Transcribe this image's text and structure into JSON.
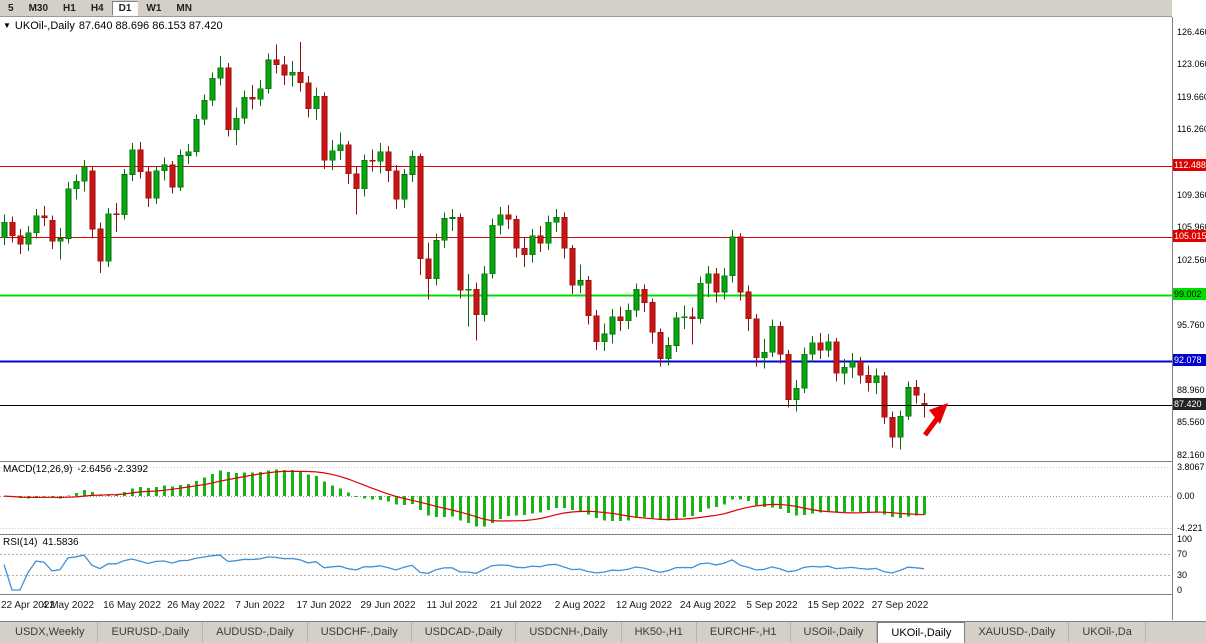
{
  "toolbar": {
    "timeframes": [
      "5",
      "M30",
      "H1",
      "H4",
      "D1",
      "W1",
      "MN"
    ],
    "active": "D1"
  },
  "chart_header": {
    "collapse_icon": "▼",
    "title": "UKOil-,Daily",
    "ohlc": "87.640 88.696 86.153 87.420"
  },
  "chart_data": {
    "type": "candlestick",
    "symbol": "UKOil-",
    "period": "Daily",
    "y_range": [
      81.6,
      128.1
    ],
    "colors": {
      "bull": "#07a80f",
      "bull_dark": "#046b09",
      "bear": "#d01414",
      "bear_dark": "#8f0d0d",
      "macd_hist": "#18b418",
      "macd_signal": "#e00000",
      "rsi_line": "#4090d8",
      "level_red": "#e00000",
      "level_green": "#00dd00",
      "level_blue": "#0000d0",
      "current_line": "#000000"
    },
    "price_axis": {
      "ticks": [
        126.46,
        123.06,
        119.66,
        116.26,
        109.36,
        105.96,
        102.56,
        95.76,
        88.96,
        85.56,
        82.16
      ],
      "badges": [
        {
          "price": 112.488,
          "label": "112.488",
          "color": "#e00000",
          "text_color": "#ffffff"
        },
        {
          "price": 105.015,
          "label": "105.015",
          "color": "#e00000",
          "text_color": "#ffffff"
        },
        {
          "price": 99.002,
          "label": "99.002",
          "color": "#00dd00",
          "text_color": "#000000"
        },
        {
          "price": 92.078,
          "label": "92.078",
          "color": "#0000d0",
          "text_color": "#ffffff"
        },
        {
          "price": 87.42,
          "label": "87.420",
          "color": "#222222",
          "text_color": "#ffffff"
        }
      ]
    },
    "levels": [
      {
        "price": 112.488,
        "color": "#e00000",
        "width": 1
      },
      {
        "price": 105.015,
        "color": "#e00000",
        "width": 1
      },
      {
        "price": 99.002,
        "color": "#00dd00",
        "width": 2
      },
      {
        "price": 92.078,
        "color": "#0000d0",
        "width": 2
      }
    ],
    "current_price": 87.42,
    "arrow": {
      "x": 936,
      "y": 402,
      "color": "#e80000",
      "direction": "up-right"
    },
    "x_labels": [
      {
        "i": 0,
        "t": "22 Apr 2022"
      },
      {
        "i": 8,
        "t": "4 May 2022"
      },
      {
        "i": 16,
        "t": "16 May 2022"
      },
      {
        "i": 24,
        "t": "26 May 2022"
      },
      {
        "i": 32,
        "t": "7 Jun 2022"
      },
      {
        "i": 40,
        "t": "17 Jun 2022"
      },
      {
        "i": 48,
        "t": "29 Jun 2022"
      },
      {
        "i": 56,
        "t": "11 Jul 2022"
      },
      {
        "i": 64,
        "t": "21 Jul 2022"
      },
      {
        "i": 72,
        "t": "2 Aug 2022"
      },
      {
        "i": 80,
        "t": "12 Aug 2022"
      },
      {
        "i": 88,
        "t": "24 Aug 2022"
      },
      {
        "i": 96,
        "t": "5 Sep 2022"
      },
      {
        "i": 104,
        "t": "15 Sep 2022"
      },
      {
        "i": 112,
        "t": "27 Sep 2022"
      }
    ],
    "candles": [
      [
        105,
        107.4,
        104.2,
        106.6
      ],
      [
        106.6,
        107.2,
        104.5,
        105.2
      ],
      [
        105.2,
        105.9,
        103.3,
        104.3
      ],
      [
        104.3,
        106.2,
        103.6,
        105.5
      ],
      [
        105.5,
        108,
        104.9,
        107.3
      ],
      [
        107.3,
        108.3,
        106.2,
        107.1
      ],
      [
        106.8,
        107.3,
        103.8,
        104.6
      ],
      [
        104.6,
        106,
        102.7,
        104.9
      ],
      [
        104.9,
        110.8,
        104.4,
        110.1
      ],
      [
        110.1,
        111.6,
        109,
        110.9
      ],
      [
        110.9,
        113.1,
        109.8,
        112.4
      ],
      [
        112,
        112.4,
        104.9,
        105.9
      ],
      [
        105.9,
        106.6,
        101.3,
        102.5
      ],
      [
        102.5,
        108.1,
        101.9,
        107.5
      ],
      [
        107.5,
        108.6,
        105.6,
        107.4
      ],
      [
        107.4,
        112.2,
        106.9,
        111.6
      ],
      [
        111.6,
        114.9,
        110.9,
        114.2
      ],
      [
        114.2,
        115,
        111.2,
        111.9
      ],
      [
        111.9,
        112.4,
        108.2,
        109.1
      ],
      [
        109.1,
        112.5,
        108.5,
        112
      ],
      [
        112,
        113.4,
        111,
        112.6
      ],
      [
        112.6,
        113,
        109.6,
        110.3
      ],
      [
        110.3,
        114.2,
        109.9,
        113.6
      ],
      [
        113.6,
        114.8,
        112.7,
        114
      ],
      [
        114,
        117.9,
        113.5,
        117.4
      ],
      [
        117.4,
        120,
        116.8,
        119.4
      ],
      [
        119.4,
        122.3,
        118.8,
        121.7
      ],
      [
        121.7,
        124,
        120.9,
        122.8
      ],
      [
        122.8,
        123.3,
        115.6,
        116.3
      ],
      [
        116.3,
        118.6,
        114.7,
        117.5
      ],
      [
        117.5,
        120.4,
        116.9,
        119.7
      ],
      [
        119.7,
        121,
        118.4,
        119.5
      ],
      [
        119.5,
        121.5,
        118.8,
        120.6
      ],
      [
        120.6,
        124.3,
        120.1,
        123.6
      ],
      [
        123.6,
        125.2,
        122.2,
        123.1
      ],
      [
        123.1,
        124,
        121,
        122
      ],
      [
        122,
        123.5,
        120.8,
        122.3
      ],
      [
        122.3,
        125.5,
        120.3,
        121.2
      ],
      [
        121.2,
        121.9,
        117.6,
        118.5
      ],
      [
        118.5,
        120.7,
        117.3,
        119.8
      ],
      [
        119.8,
        120.2,
        112.2,
        113.1
      ],
      [
        113.1,
        115.2,
        112.1,
        114.1
      ],
      [
        114.1,
        116,
        113.1,
        114.7
      ],
      [
        114.7,
        115.1,
        110.6,
        111.7
      ],
      [
        111.7,
        112.5,
        107.4,
        110.1
      ],
      [
        110.1,
        113.7,
        109.3,
        113.1
      ],
      [
        113.1,
        114.2,
        111.9,
        113
      ],
      [
        113,
        114.9,
        111.7,
        114
      ],
      [
        114,
        114.6,
        110.8,
        112
      ],
      [
        112,
        112.6,
        108,
        109
      ],
      [
        109,
        112.2,
        108.1,
        111.6
      ],
      [
        111.6,
        114.1,
        110.8,
        113.5
      ],
      [
        113.5,
        113.8,
        101.1,
        102.8
      ],
      [
        102.8,
        104.5,
        98.5,
        100.7
      ],
      [
        100.7,
        105.4,
        100,
        104.7
      ],
      [
        104.7,
        107.6,
        103.9,
        107
      ],
      [
        107,
        108,
        105.7,
        107.1
      ],
      [
        107.1,
        107.5,
        98.6,
        99.5
      ],
      [
        99.5,
        101.2,
        95.7,
        99.6
      ],
      [
        99.6,
        100.3,
        94.2,
        96.9
      ],
      [
        96.9,
        102,
        96.2,
        101.2
      ],
      [
        101.2,
        107,
        100.7,
        106.3
      ],
      [
        106.3,
        108.2,
        105.3,
        107.4
      ],
      [
        107.4,
        108.4,
        105.9,
        106.9
      ],
      [
        106.9,
        107.3,
        102.9,
        103.9
      ],
      [
        103.9,
        105,
        101.9,
        103.2
      ],
      [
        103.2,
        105.9,
        102.4,
        105.2
      ],
      [
        105.2,
        106.2,
        103.5,
        104.4
      ],
      [
        104.4,
        107.3,
        103.7,
        106.6
      ],
      [
        106.6,
        108,
        105.6,
        107.1
      ],
      [
        107.1,
        107.6,
        102.8,
        103.9
      ],
      [
        103.9,
        104.2,
        99.1,
        100
      ],
      [
        100,
        102.2,
        99.2,
        100.5
      ],
      [
        100.5,
        101,
        95.9,
        96.8
      ],
      [
        96.8,
        97.4,
        93.2,
        94.1
      ],
      [
        94.1,
        96,
        93.1,
        94.9
      ],
      [
        94.9,
        97.5,
        93.9,
        96.7
      ],
      [
        96.7,
        97.8,
        95.2,
        96.3
      ],
      [
        96.3,
        98.1,
        95.4,
        97.4
      ],
      [
        97.4,
        100.2,
        96.7,
        99.6
      ],
      [
        99.6,
        100.1,
        97.2,
        98.2
      ],
      [
        98.2,
        98.6,
        93.9,
        95.1
      ],
      [
        95.1,
        95.5,
        91.5,
        92.3
      ],
      [
        92.3,
        94.6,
        91.6,
        93.7
      ],
      [
        93.7,
        97.2,
        93,
        96.6
      ],
      [
        96.6,
        97.9,
        95.4,
        96.7
      ],
      [
        96.7,
        97.7,
        93.8,
        96.5
      ],
      [
        96.5,
        100.9,
        96,
        100.2
      ],
      [
        100.2,
        102,
        98.8,
        101.2
      ],
      [
        101.2,
        101.8,
        98.2,
        99.3
      ],
      [
        99.3,
        101.8,
        98.5,
        101
      ],
      [
        101,
        105.8,
        100.3,
        105.1
      ],
      [
        105.1,
        105.5,
        98.4,
        99.3
      ],
      [
        99.3,
        100,
        95.2,
        96.5
      ],
      [
        96.5,
        97,
        91.5,
        92.4
      ],
      [
        92.4,
        94.4,
        91.3,
        93
      ],
      [
        93,
        96.4,
        92.5,
        95.7
      ],
      [
        95.7,
        96.2,
        91.8,
        92.8
      ],
      [
        92.8,
        93.2,
        87.2,
        88
      ],
      [
        88,
        90.1,
        86.8,
        89.2
      ],
      [
        89.2,
        93.5,
        88.7,
        92.8
      ],
      [
        92.8,
        94.7,
        91.9,
        94
      ],
      [
        94,
        95,
        92.3,
        93.2
      ],
      [
        93.2,
        94.9,
        92.5,
        94.1
      ],
      [
        94.1,
        94.5,
        89.9,
        90.8
      ],
      [
        90.8,
        92.3,
        89.6,
        91.4
      ],
      [
        91.4,
        92.9,
        90.3,
        92
      ],
      [
        92,
        92.5,
        89.7,
        90.6
      ],
      [
        90.6,
        91.6,
        88.9,
        89.8
      ],
      [
        89.8,
        91.3,
        88.6,
        90.5
      ],
      [
        90.5,
        90.9,
        85.5,
        86.2
      ],
      [
        86.2,
        86.8,
        83,
        84.1
      ],
      [
        84.1,
        86.9,
        82.8,
        86.3
      ],
      [
        86.3,
        89.9,
        85.9,
        89.3
      ],
      [
        89.3,
        90.1,
        87.6,
        88.5
      ],
      [
        87.64,
        88.696,
        86.153,
        87.42
      ]
    ],
    "indicators": {
      "macd": {
        "label": "MACD(12,26,9)",
        "values_text": "-2.6456 -2.3392",
        "params": [
          12,
          26,
          9
        ],
        "range": [
          4.5,
          -5.0
        ],
        "axis": [
          {
            "v": 3.8067,
            "label": "3.8067"
          },
          {
            "v": 0,
            "label": "0.00"
          },
          {
            "v": -4.221,
            "label": "-4.221"
          }
        ]
      },
      "rsi": {
        "label": "RSI(14)",
        "value_text": "41.5836",
        "period": 14,
        "levels": [
          70,
          30
        ],
        "axis": [
          {
            "v": 100,
            "label": "100"
          },
          {
            "v": 70,
            "label": "70"
          },
          {
            "v": 30,
            "label": "30"
          },
          {
            "v": 0,
            "label": "0"
          }
        ]
      }
    }
  },
  "tabbar": {
    "tabs": [
      {
        "label": "USDX,Weekly"
      },
      {
        "label": "EURUSD-,Daily"
      },
      {
        "label": "AUDUSD-,Daily"
      },
      {
        "label": "USDCHF-,Daily"
      },
      {
        "label": "USDCAD-,Daily"
      },
      {
        "label": "USDCNH-,Daily"
      },
      {
        "label": "HK50-,H1"
      },
      {
        "label": "EURCHF-,H1"
      },
      {
        "label": "USOil-,Daily"
      },
      {
        "label": "UKOil-,Daily",
        "active": true
      },
      {
        "label": "XAUUSD-,Daily"
      },
      {
        "label": "UKOil-,Da"
      }
    ]
  }
}
